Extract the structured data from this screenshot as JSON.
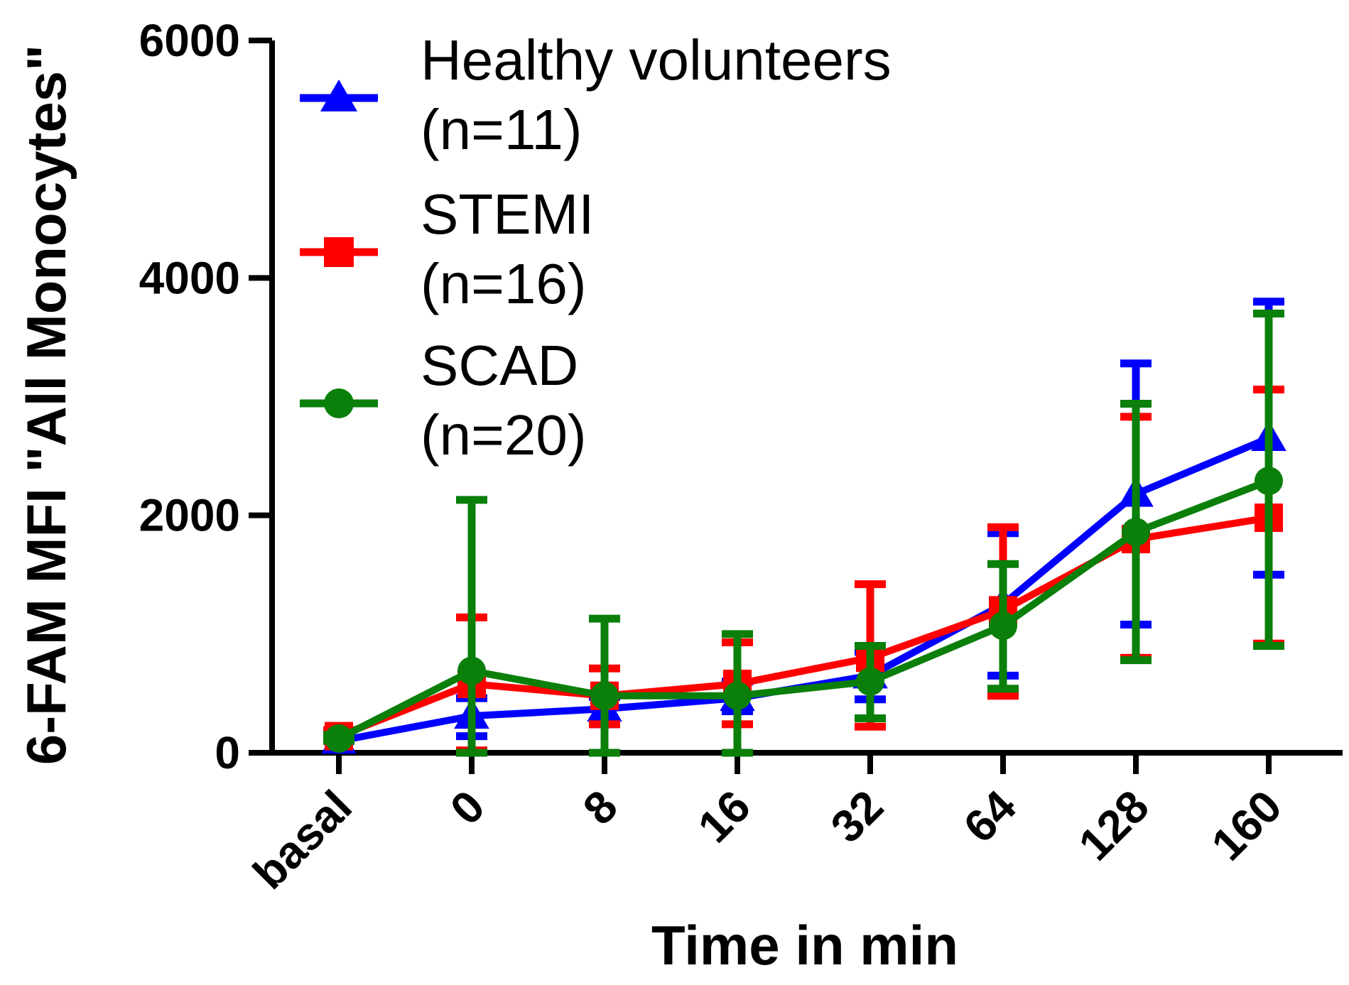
{
  "chart_data": {
    "type": "line",
    "title": "",
    "xlabel": "Time in min",
    "ylabel": "6-FAM MFI \"All Monocytes\"",
    "ylim": [
      0,
      6000
    ],
    "yticks": [
      "0",
      "2000",
      "4000",
      "6000"
    ],
    "categories": [
      "basal",
      "0",
      "8",
      "16",
      "32",
      "64",
      "128",
      "160"
    ],
    "legend_position": "top-left",
    "series": [
      {
        "name_line1": "Healthy volunteers",
        "name_line2": "(n=11)",
        "color": "#0000ff",
        "marker": "triangle",
        "values": [
          100,
          310,
          370,
          460,
          650,
          1250,
          2180,
          2650
        ],
        "err_low": [
          0,
          170,
          130,
          110,
          200,
          600,
          1100,
          1150
        ],
        "err_high": [
          80,
          150,
          100,
          140,
          200,
          600,
          1100,
          1150
        ]
      },
      {
        "name_line1": "STEMI",
        "name_line2": "(n=16)",
        "color": "#ff0000",
        "marker": "square",
        "values": [
          140,
          580,
          480,
          580,
          800,
          1200,
          1800,
          1980
        ],
        "err_low": [
          40,
          560,
          240,
          340,
          580,
          720,
          1000,
          1060
        ],
        "err_high": [
          50,
          560,
          230,
          350,
          620,
          700,
          1030,
          1080
        ]
      },
      {
        "name_line1": "SCAD",
        "name_line2": "(n=20)",
        "color": "#0a7f0a",
        "marker": "circle",
        "values": [
          120,
          690,
          480,
          480,
          600,
          1070,
          1860,
          2290
        ],
        "err_low": [
          20,
          690,
          480,
          480,
          310,
          530,
          1080,
          1390
        ],
        "err_high": [
          30,
          1440,
          650,
          520,
          300,
          520,
          1080,
          1410
        ]
      }
    ]
  }
}
